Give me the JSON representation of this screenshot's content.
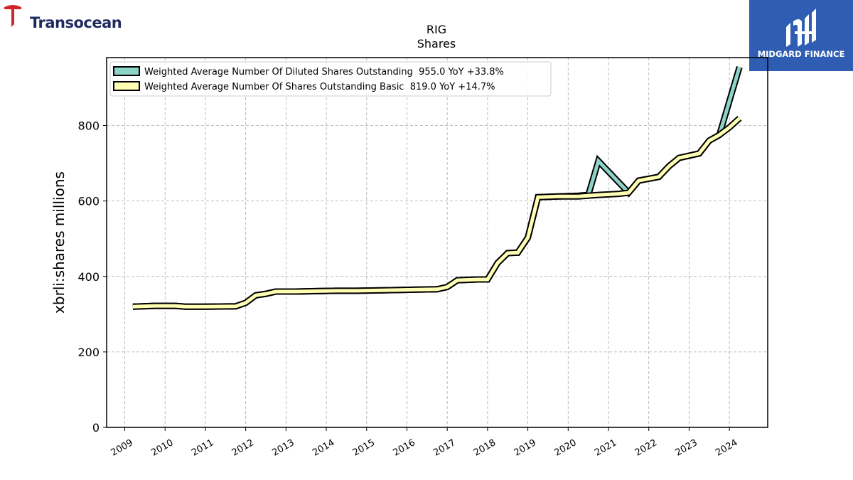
{
  "branding": {
    "left_logo_text": "Transocean",
    "right_logo_text": "MIDGARD FINANCE",
    "left_logo_color": "#d0262b",
    "right_logo_bg": "#2f5db3"
  },
  "chart_data": {
    "type": "line",
    "title": "RIG",
    "subtitle": "Shares",
    "ylabel": "xbrli:shares millions",
    "xlabel": "",
    "ylim": [
      0,
      980
    ],
    "xlim": [
      2008.55,
      2024.95
    ],
    "yticks": [
      0,
      200,
      400,
      600,
      800
    ],
    "xticks": [
      "2009",
      "2010",
      "2011",
      "2012",
      "2013",
      "2014",
      "2015",
      "2016",
      "2017",
      "2018",
      "2019",
      "2020",
      "2021",
      "2022",
      "2023",
      "2024"
    ],
    "grid": true,
    "legend_position": "top-left",
    "series": [
      {
        "name": "Weighted Average Number Of Diluted Shares Outstanding",
        "legend_label": "Weighted Average Number Of Diluted Shares Outstanding  955.0 YoY +33.8%",
        "color": "#8dd3c7",
        "x": [
          2009.2,
          2009.75,
          2010.25,
          2010.5,
          2011.0,
          2011.75,
          2012.0,
          2012.25,
          2012.5,
          2012.75,
          2013.25,
          2013.75,
          2014.25,
          2014.75,
          2015.25,
          2015.75,
          2016.25,
          2016.75,
          2017.0,
          2017.25,
          2017.75,
          2018.0,
          2018.25,
          2018.5,
          2018.75,
          2019.0,
          2019.25,
          2019.75,
          2020.25,
          2020.5,
          2020.75,
          2021.5,
          2021.75,
          2022.25,
          2022.5,
          2022.75,
          2023.25,
          2023.5,
          2023.75,
          2024.25
        ],
        "y": [
          320,
          322,
          322,
          320,
          320,
          321,
          330,
          350,
          354,
          360,
          360,
          361,
          362,
          362,
          363,
          364,
          365,
          366,
          372,
          390,
          392,
          392,
          436,
          462,
          463,
          503,
          610,
          612,
          614,
          616,
          706,
          622,
          654,
          664,
          692,
          714,
          726,
          760,
          775,
          955
        ]
      },
      {
        "name": "Weighted Average Number Of Shares Outstanding Basic",
        "legend_label": "Weighted Average Number Of Shares Outstanding Basic  819.0 YoY +14.7%",
        "color": "#ffffb3",
        "x": [
          2009.2,
          2009.75,
          2010.25,
          2010.5,
          2011.0,
          2011.75,
          2012.0,
          2012.25,
          2012.5,
          2012.75,
          2013.25,
          2013.75,
          2014.25,
          2014.75,
          2015.25,
          2015.75,
          2016.25,
          2016.75,
          2017.0,
          2017.25,
          2017.75,
          2018.0,
          2018.25,
          2018.5,
          2018.75,
          2019.0,
          2019.25,
          2019.75,
          2020.25,
          2020.75,
          2021.25,
          2021.5,
          2021.75,
          2022.25,
          2022.5,
          2022.75,
          2023.25,
          2023.5,
          2023.75,
          2024.0,
          2024.25
        ],
        "y": [
          320,
          322,
          322,
          320,
          320,
          321,
          330,
          350,
          354,
          360,
          360,
          361,
          362,
          362,
          363,
          364,
          365,
          366,
          372,
          390,
          392,
          392,
          436,
          462,
          463,
          503,
          610,
          612,
          612,
          616,
          619,
          622,
          654,
          664,
          692,
          714,
          726,
          760,
          775,
          795,
          819
        ]
      }
    ]
  }
}
